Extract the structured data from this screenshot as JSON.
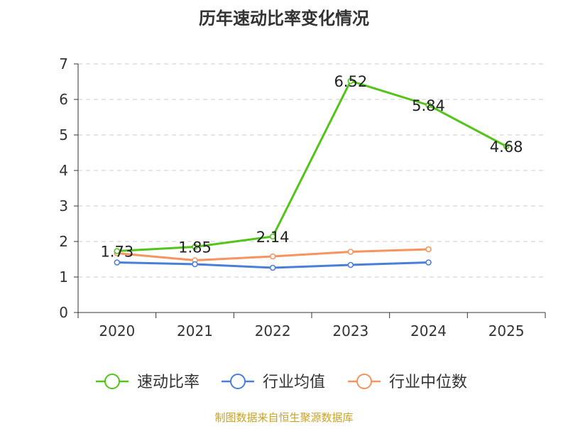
{
  "chart_data": {
    "type": "line",
    "title": "历年速动比率变化情况",
    "xlabel": "",
    "ylabel": "",
    "categories": [
      "2020",
      "2021",
      "2022",
      "2023",
      "2024",
      "2025"
    ],
    "ylim": [
      0,
      7
    ],
    "yticks": [
      0,
      1,
      2,
      3,
      4,
      5,
      6,
      7
    ],
    "grid": true,
    "legend_position": "bottom",
    "series": [
      {
        "name": "速动比率",
        "color": "#52c41a",
        "values": [
          1.73,
          1.85,
          2.14,
          6.52,
          5.84,
          4.68
        ],
        "labels": [
          "1.73",
          "1.85",
          "2.14",
          "6.52",
          "5.84",
          "4.68"
        ]
      },
      {
        "name": "行业均值",
        "color": "#4a7fd9",
        "values": [
          1.41,
          1.36,
          1.26,
          1.34,
          1.41,
          null
        ]
      },
      {
        "name": "行业中位数",
        "color": "#f7935c",
        "values": [
          1.67,
          1.47,
          1.58,
          1.71,
          1.78,
          null
        ]
      }
    ]
  },
  "footer": {
    "source": "制图数据来自恒生聚源数据库"
  }
}
